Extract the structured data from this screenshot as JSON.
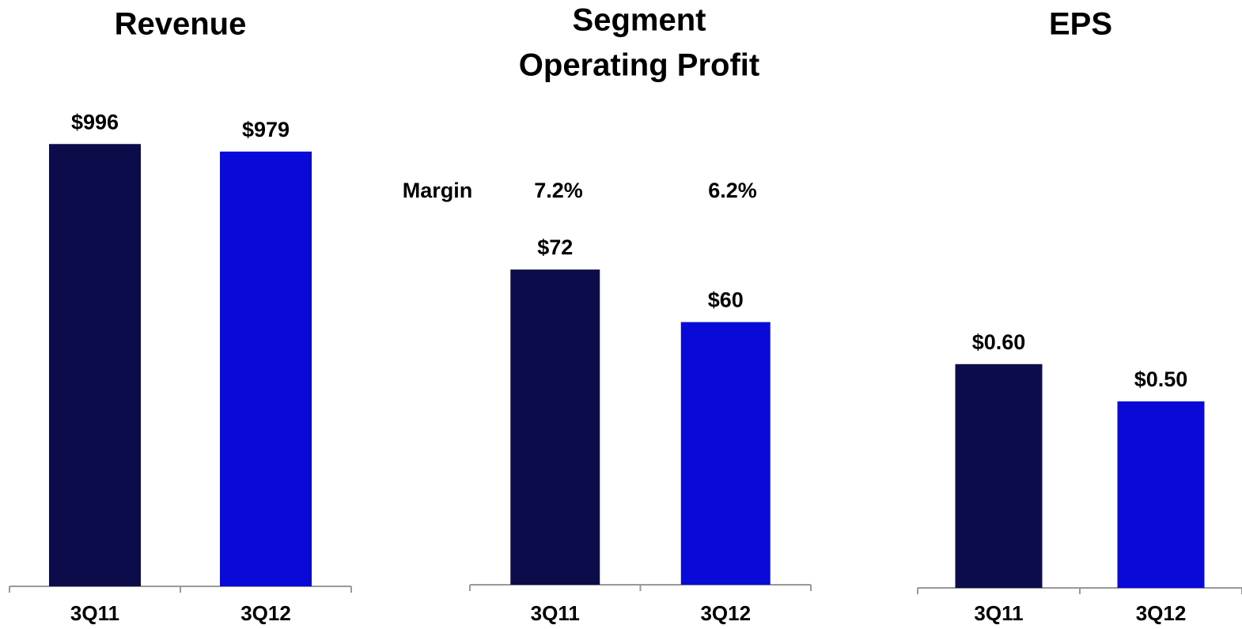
{
  "chart_data": [
    {
      "type": "bar",
      "title": [
        "Revenue"
      ],
      "categories": [
        "3Q11",
        "3Q12"
      ],
      "values": [
        996,
        979
      ],
      "value_labels": [
        "$996",
        "$979"
      ],
      "colors": [
        "#0c0c4a",
        "#0a0ad8"
      ],
      "ylim": [
        0,
        1000
      ]
    },
    {
      "type": "bar",
      "title": [
        "Segment",
        "Operating Profit"
      ],
      "categories": [
        "3Q11",
        "3Q12"
      ],
      "values": [
        72,
        60
      ],
      "value_labels": [
        "$72",
        "$60"
      ],
      "colors": [
        "#0c0c4a",
        "#0a0ad8"
      ],
      "ylim": [
        0,
        100
      ],
      "annotations": [
        "Margin",
        "7.2%",
        "6.2%"
      ]
    },
    {
      "type": "bar",
      "title": [
        "EPS"
      ],
      "categories": [
        "3Q11",
        "3Q12"
      ],
      "values": [
        0.6,
        0.5
      ],
      "value_labels": [
        "$0.60",
        "$0.50"
      ],
      "colors": [
        "#0c0c4a",
        "#0a0ad8"
      ],
      "ylim": [
        0,
        1
      ]
    }
  ]
}
